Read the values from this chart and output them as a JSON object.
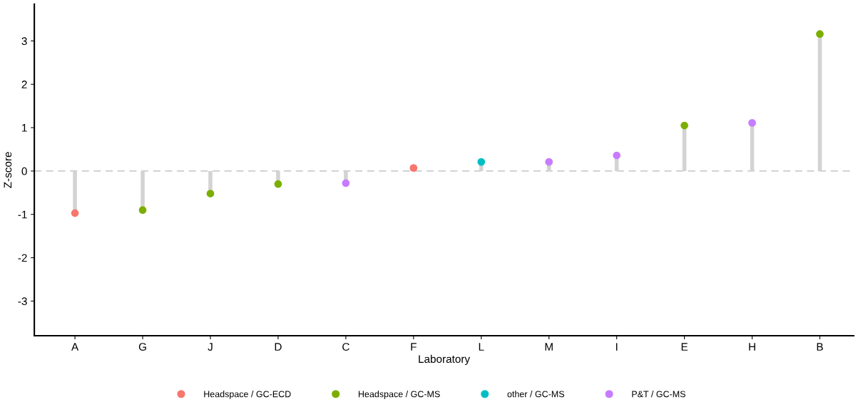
{
  "chart_data": {
    "type": "lollipop",
    "xlabel": "Laboratory",
    "ylabel": "Z-score",
    "categories": [
      "A",
      "G",
      "J",
      "D",
      "C",
      "F",
      "L",
      "M",
      "I",
      "E",
      "H",
      "B"
    ],
    "series": [
      {
        "name": "Headspace / GC-ECD",
        "color": "#f8766d",
        "values": [
          -0.97,
          null,
          null,
          null,
          null,
          0.07,
          null,
          null,
          null,
          null,
          null,
          null
        ]
      },
      {
        "name": "Headspace / GC-MS",
        "color": "#7cae00",
        "values": [
          null,
          -0.9,
          -0.52,
          -0.3,
          null,
          null,
          null,
          null,
          null,
          1.05,
          null,
          3.16
        ]
      },
      {
        "name": "other / GC-MS",
        "color": "#00bfc4",
        "values": [
          null,
          null,
          null,
          null,
          null,
          null,
          0.21,
          null,
          null,
          null,
          null,
          null
        ]
      },
      {
        "name": "P&T / GC-MS",
        "color": "#c77cff",
        "values": [
          null,
          null,
          null,
          null,
          -0.28,
          null,
          null,
          0.21,
          0.36,
          null,
          1.11,
          null
        ]
      }
    ],
    "ylim": [
      -3.8,
      3.85
    ],
    "yticks": [
      -3,
      -2,
      -1,
      0,
      1,
      2,
      3
    ],
    "ref_lines": [
      {
        "axis": "y",
        "value": 0,
        "color": "#cccccc",
        "line_style": "dashed"
      }
    ],
    "legend": "bottom",
    "grid": false,
    "marker": "circle"
  }
}
